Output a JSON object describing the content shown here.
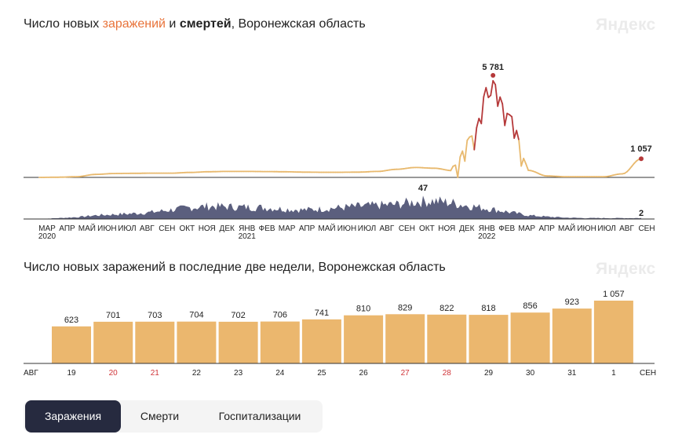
{
  "title1": {
    "prefix": "Число новых ",
    "infections": "заражений",
    "and": " и ",
    "deaths": "смертей",
    "suffix": ", Воронежская область"
  },
  "title2": "Число новых заражений в последние две недели, Воронежская область",
  "logo": "Яндекс",
  "colors": {
    "infections": "#e8b96e",
    "infections_peak": "#b5393a",
    "deaths": "#5b5f7e",
    "bars": "#ebb76e",
    "axis": "#333333",
    "tab_active": "#262a3f"
  },
  "tabs": [
    {
      "label": "Заражения",
      "active": true
    },
    {
      "label": "Смерти",
      "active": false
    },
    {
      "label": "Госпитализации",
      "active": false
    }
  ],
  "chart_data": [
    {
      "type": "line",
      "name": "timeline",
      "x_ticks": [
        {
          "label": "МАР",
          "sub": "2020"
        },
        {
          "label": "АПР"
        },
        {
          "label": "МАЙ"
        },
        {
          "label": "ИЮН"
        },
        {
          "label": "ИЮЛ"
        },
        {
          "label": "АВГ"
        },
        {
          "label": "СЕН"
        },
        {
          "label": "ОКТ"
        },
        {
          "label": "НОЯ"
        },
        {
          "label": "ДЕК"
        },
        {
          "label": "ЯНВ",
          "sub": "2021"
        },
        {
          "label": "ФЕВ"
        },
        {
          "label": "МАР"
        },
        {
          "label": "АПР"
        },
        {
          "label": "МАЙ"
        },
        {
          "label": "ИЮН"
        },
        {
          "label": "ИЮЛ"
        },
        {
          "label": "АВГ"
        },
        {
          "label": "СЕН"
        },
        {
          "label": "ОКТ"
        },
        {
          "label": "НОЯ"
        },
        {
          "label": "ДЕК"
        },
        {
          "label": "ЯНВ",
          "sub": "2022"
        },
        {
          "label": "ФЕВ"
        },
        {
          "label": "МАР"
        },
        {
          "label": "АПР"
        },
        {
          "label": "МАЙ"
        },
        {
          "label": "ИЮН"
        },
        {
          "label": "ИЮЛ"
        },
        {
          "label": "АВГ"
        },
        {
          "label": "СЕН"
        }
      ],
      "infections": {
        "monthly_approx": [
          0,
          10,
          40,
          170,
          220,
          230,
          240,
          240,
          280,
          320,
          340,
          340,
          330,
          320,
          300,
          290,
          290,
          300,
          340,
          460,
          560,
          520,
          380,
          2100,
          5300,
          3300,
          400,
          80,
          40,
          40,
          40,
          200,
          1057
        ],
        "peak_label": "5 781",
        "last_label": "1 057"
      },
      "deaths": {
        "monthly_approx": [
          0,
          2,
          4,
          8,
          10,
          12,
          15,
          20,
          25,
          28,
          27,
          26,
          25,
          22,
          20,
          22,
          25,
          28,
          30,
          32,
          38,
          40,
          35,
          28,
          22,
          15,
          8,
          5,
          3,
          2,
          2,
          2,
          2
        ],
        "peak_label": "47",
        "last_label": "2"
      }
    },
    {
      "type": "bar",
      "name": "last-two-weeks",
      "categories": [
        "19",
        "20",
        "21",
        "22",
        "23",
        "24",
        "25",
        "26",
        "27",
        "28",
        "29",
        "30",
        "31",
        "1"
      ],
      "weekend": [
        false,
        true,
        true,
        false,
        false,
        false,
        false,
        false,
        true,
        true,
        false,
        false,
        false,
        false
      ],
      "values": [
        623,
        701,
        703,
        704,
        702,
        706,
        741,
        810,
        829,
        822,
        818,
        856,
        923,
        1057
      ],
      "labels": [
        "623",
        "701",
        "703",
        "704",
        "702",
        "706",
        "741",
        "810",
        "829",
        "822",
        "818",
        "856",
        "923",
        "1 057"
      ],
      "left_label": "АВГ",
      "right_label": "СЕН",
      "ylim": [
        0,
        1057
      ]
    }
  ]
}
